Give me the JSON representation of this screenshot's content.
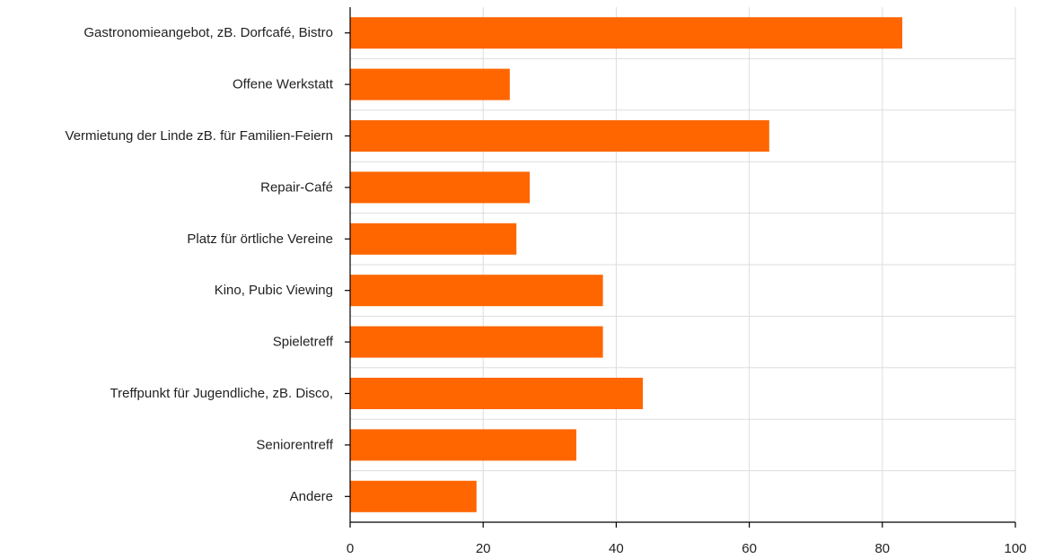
{
  "chart_data": {
    "type": "bar",
    "orientation": "horizontal",
    "categories": [
      "Gastronomieangebot, zB. Dorfcafé, Bistro",
      "Offene Werkstatt",
      "Vermietung der Linde zB. für Familien-Feiern",
      "Repair-Café",
      "Platz für örtliche Vereine",
      "Kino, Pubic Viewing",
      "Spieletreff",
      "Treffpunkt für Jugendliche, zB. Disco,",
      "Seniorentreff",
      "Andere"
    ],
    "values": [
      83,
      24,
      63,
      27,
      25,
      38,
      38,
      44,
      34,
      19
    ],
    "xlim": [
      0,
      100
    ],
    "xticks": [
      0,
      20,
      40,
      60,
      80,
      100
    ],
    "grid": true,
    "bar_color": "#ff6600"
  }
}
